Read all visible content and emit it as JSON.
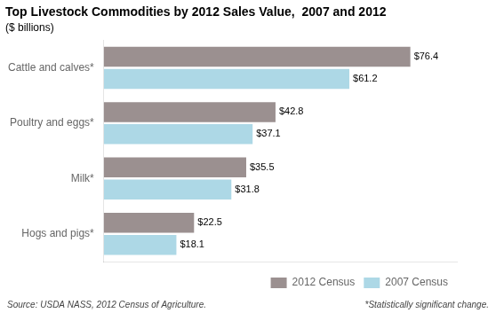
{
  "chart_data": {
    "type": "bar",
    "orientation": "horizontal",
    "title": "Top Livestock Commodities by 2012 Sales Value,  2007 and 2012",
    "subtitle": "($ billions)",
    "categories": [
      "Cattle and calves*",
      "Poultry and eggs*",
      "Milk*",
      "Hogs and pigs*"
    ],
    "series": [
      {
        "name": "2012 Census",
        "color": "#9b9090",
        "values": [
          76.4,
          42.8,
          35.5,
          22.5
        ],
        "value_labels": [
          "$76.4",
          "$42.8",
          "$35.5",
          "$22.5"
        ]
      },
      {
        "name": "2007 Census",
        "color": "#add8e6",
        "values": [
          61.2,
          37.1,
          31.8,
          18.1
        ],
        "value_labels": [
          "$61.2",
          "$37.1",
          "$31.8",
          "$18.1"
        ]
      }
    ],
    "xlim": [
      0,
      88
    ],
    "grid": false,
    "legend": "lower right",
    "data_labels": true,
    "tick_labels": "y",
    "annotations": [
      "Source: USDA NASS, 2012 Census of Agriculture.",
      "*Statistically significant change."
    ]
  }
}
